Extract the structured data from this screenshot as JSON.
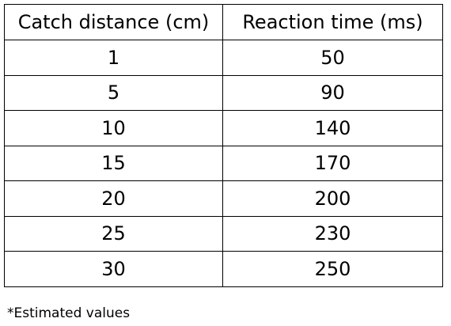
{
  "table": {
    "headers": [
      "Catch distance (cm)",
      "Reaction time (ms)"
    ],
    "rows": [
      [
        1,
        50
      ],
      [
        5,
        90
      ],
      [
        10,
        140
      ],
      [
        15,
        170
      ],
      [
        20,
        200
      ],
      [
        25,
        230
      ],
      [
        30,
        250
      ]
    ]
  },
  "note": "*Estimated values"
}
